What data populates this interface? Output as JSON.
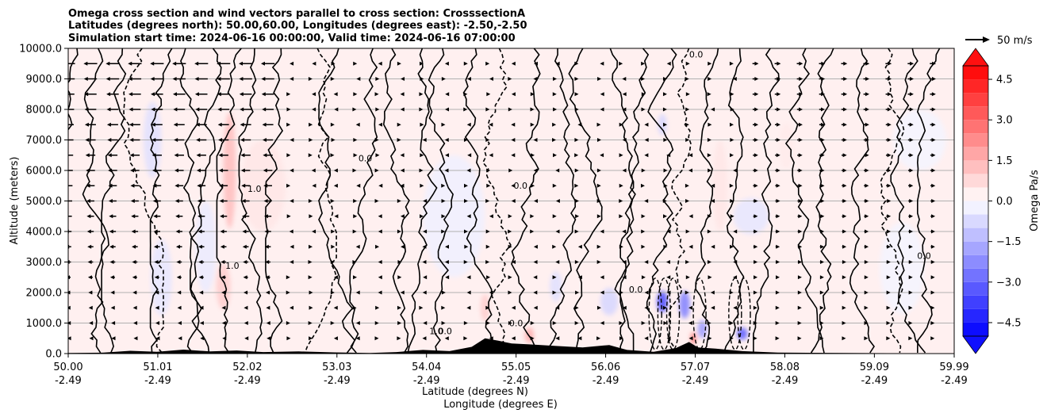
{
  "chart_data": {
    "type": "heatmap",
    "title_lines": [
      "Omega cross section and wind vectors parallel to cross section: CrosssectionA",
      "Latitudes (degrees north): 50.00,60.00, Longitudes (degrees east): -2.50,-2.50",
      "Simulation start time: 2024-06-16 00:00:00, Valid time: 2024-06-16 07:00:00"
    ],
    "ylabel": "Altitude (meters)",
    "xlabel_lines": [
      "Latitude (degrees N)",
      "Longitude (degrees E)"
    ],
    "xlim": [
      50.0,
      59.99
    ],
    "ylim": [
      0,
      10000
    ],
    "grid": "horizontal",
    "x_ticks": [
      {
        "value": 50.0,
        "lat": "50.00",
        "lon": "-2.49"
      },
      {
        "value": 51.01,
        "lat": "51.01",
        "lon": "-2.49"
      },
      {
        "value": 52.02,
        "lat": "52.02",
        "lon": "-2.49"
      },
      {
        "value": 53.03,
        "lat": "53.03",
        "lon": "-2.49"
      },
      {
        "value": 54.04,
        "lat": "54.04",
        "lon": "-2.49"
      },
      {
        "value": 55.05,
        "lat": "55.05",
        "lon": "-2.49"
      },
      {
        "value": 56.06,
        "lat": "56.06",
        "lon": "-2.49"
      },
      {
        "value": 57.07,
        "lat": "57.07",
        "lon": "-2.49"
      },
      {
        "value": 58.08,
        "lat": "58.08",
        "lon": "-2.49"
      },
      {
        "value": 59.09,
        "lat": "59.09",
        "lon": "-2.49"
      },
      {
        "value": 59.99,
        "lat": "59.99",
        "lon": "-2.49"
      }
    ],
    "y_ticks": [
      {
        "value": 0,
        "label": "0.0"
      },
      {
        "value": 1000,
        "label": "1000.0"
      },
      {
        "value": 2000,
        "label": "2000.0"
      },
      {
        "value": 3000,
        "label": "3000.0"
      },
      {
        "value": 4000,
        "label": "4000.0"
      },
      {
        "value": 5000,
        "label": "5000.0"
      },
      {
        "value": 6000,
        "label": "6000.0"
      },
      {
        "value": 7000,
        "label": "7000.0"
      },
      {
        "value": 8000,
        "label": "8000.0"
      },
      {
        "value": 9000,
        "label": "9000.0"
      },
      {
        "value": 10000,
        "label": "10000.0"
      }
    ],
    "colorbar": {
      "label": "Omega Pa/s",
      "range": [
        -5.0,
        5.0
      ],
      "extend": "both",
      "cmap": "bwr",
      "ticks": [
        {
          "value": 4.5,
          "label": "4.5"
        },
        {
          "value": 3.0,
          "label": "3.0"
        },
        {
          "value": 1.5,
          "label": "1.5"
        },
        {
          "value": 0.0,
          "label": "0.0"
        },
        {
          "value": -1.5,
          "label": "−1.5"
        },
        {
          "value": -3.0,
          "label": "−3.0"
        },
        {
          "value": -4.5,
          "label": "−4.5"
        }
      ]
    },
    "quiver_key": {
      "label": "50 m/s",
      "speed": 50
    },
    "colors": {
      "positive": "#ff0000",
      "negative": "#0000ff",
      "terrain": "#000000",
      "contour": "#000000"
    },
    "omega_features": [
      {
        "lat": 51.82,
        "alt": 6000,
        "value": 1.3,
        "w": 0.07,
        "h": 3800
      },
      {
        "lat": 51.75,
        "alt": 2200,
        "value": 1.0,
        "w": 0.08,
        "h": 1500
      },
      {
        "lat": 51.55,
        "alt": 3500,
        "value": -0.4,
        "w": 0.12,
        "h": 3000
      },
      {
        "lat": 50.95,
        "alt": 7000,
        "value": -0.6,
        "w": 0.1,
        "h": 2500
      },
      {
        "lat": 51.05,
        "alt": 2500,
        "value": -0.5,
        "w": 0.12,
        "h": 2500
      },
      {
        "lat": 52.2,
        "alt": 5500,
        "value": 0.5,
        "w": 0.25,
        "h": 3000
      },
      {
        "lat": 53.2,
        "alt": 5000,
        "value": 0.3,
        "w": 0.35,
        "h": 3500
      },
      {
        "lat": 54.35,
        "alt": 4500,
        "value": -0.3,
        "w": 0.35,
        "h": 4000
      },
      {
        "lat": 54.7,
        "alt": 1500,
        "value": 1.0,
        "w": 0.05,
        "h": 900
      },
      {
        "lat": 55.2,
        "alt": 600,
        "value": 1.6,
        "w": 0.05,
        "h": 500
      },
      {
        "lat": 55.5,
        "alt": 2200,
        "value": -0.6,
        "w": 0.07,
        "h": 1000
      },
      {
        "lat": 56.1,
        "alt": 1700,
        "value": -0.8,
        "w": 0.1,
        "h": 900
      },
      {
        "lat": 56.7,
        "alt": 1700,
        "value": -3.5,
        "w": 0.06,
        "h": 700
      },
      {
        "lat": 56.95,
        "alt": 1600,
        "value": -2.5,
        "w": 0.06,
        "h": 900
      },
      {
        "lat": 57.05,
        "alt": 500,
        "value": 2.8,
        "w": 0.03,
        "h": 400
      },
      {
        "lat": 57.15,
        "alt": 800,
        "value": -2.0,
        "w": 0.05,
        "h": 600
      },
      {
        "lat": 57.6,
        "alt": 650,
        "value": -3.2,
        "w": 0.06,
        "h": 400
      },
      {
        "lat": 56.7,
        "alt": 7500,
        "value": -0.8,
        "w": 0.05,
        "h": 700
      },
      {
        "lat": 57.35,
        "alt": 5500,
        "value": 0.5,
        "w": 0.08,
        "h": 3000
      },
      {
        "lat": 57.7,
        "alt": 4500,
        "value": -0.5,
        "w": 0.2,
        "h": 1200
      },
      {
        "lat": 58.1,
        "alt": 6800,
        "value": 0.4,
        "w": 0.08,
        "h": 1500
      },
      {
        "lat": 58.6,
        "alt": 3800,
        "value": 0.3,
        "w": 0.25,
        "h": 2500
      },
      {
        "lat": 59.4,
        "alt": 2800,
        "value": -0.2,
        "w": 0.25,
        "h": 3000
      },
      {
        "lat": 59.6,
        "alt": 7000,
        "value": -0.2,
        "w": 0.3,
        "h": 2000
      },
      {
        "lat": 50.3,
        "alt": 5000,
        "value": 0.3,
        "w": 0.2,
        "h": 5000
      }
    ],
    "terrain_profile": [
      [
        50.0,
        20
      ],
      [
        50.4,
        30
      ],
      [
        50.7,
        90
      ],
      [
        51.0,
        60
      ],
      [
        51.3,
        130
      ],
      [
        51.6,
        70
      ],
      [
        51.9,
        100
      ],
      [
        52.2,
        50
      ],
      [
        52.6,
        70
      ],
      [
        53.0,
        40
      ],
      [
        53.4,
        20
      ],
      [
        53.7,
        50
      ],
      [
        54.0,
        120
      ],
      [
        54.3,
        80
      ],
      [
        54.55,
        220
      ],
      [
        54.7,
        500
      ],
      [
        54.85,
        420
      ],
      [
        55.0,
        330
      ],
      [
        55.2,
        300
      ],
      [
        55.5,
        250
      ],
      [
        55.8,
        200
      ],
      [
        56.1,
        280
      ],
      [
        56.3,
        120
      ],
      [
        56.6,
        60
      ],
      [
        56.85,
        180
      ],
      [
        57.0,
        380
      ],
      [
        57.1,
        200
      ],
      [
        57.3,
        160
      ],
      [
        57.6,
        80
      ],
      [
        58.0,
        30
      ],
      [
        59.99,
        0
      ]
    ],
    "contour_labels": [
      {
        "lat": 53.35,
        "alt": 6300,
        "text": "0.0"
      },
      {
        "lat": 55.1,
        "alt": 5400,
        "text": "0.0"
      },
      {
        "lat": 54.15,
        "alt": 640,
        "text": "1.0"
      },
      {
        "lat": 54.25,
        "alt": 640,
        "text": "0.0"
      },
      {
        "lat": 55.05,
        "alt": 900,
        "text": "0.0"
      },
      {
        "lat": 51.85,
        "alt": 2780,
        "text": "1.0"
      },
      {
        "lat": 59.65,
        "alt": 3100,
        "text": "0.0"
      },
      {
        "lat": 52.1,
        "alt": 5300,
        "text": "1.0"
      },
      {
        "lat": 57.08,
        "alt": 9700,
        "text": "0.0"
      },
      {
        "lat": 56.4,
        "alt": 2000,
        "text": "0.0"
      }
    ]
  }
}
